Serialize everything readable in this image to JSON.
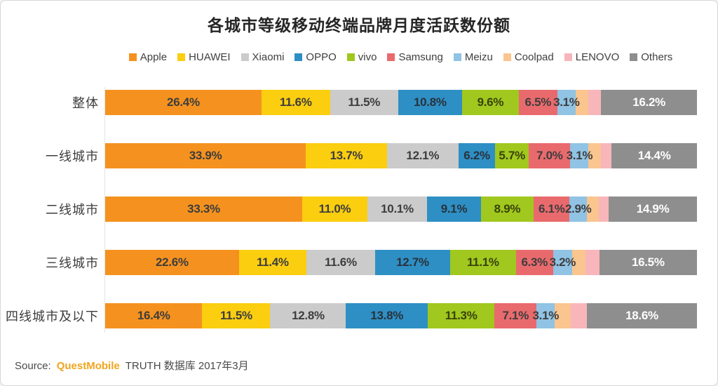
{
  "title": "各城市等级移动终端品牌月度活跃数份额",
  "chart_data": {
    "type": "bar",
    "variant": "horizontal-stacked",
    "title": "各城市等级移动终端品牌月度活跃数份额",
    "value_suffix": "%",
    "xlim": [
      0,
      100
    ],
    "grid": false,
    "legend_position": "top",
    "categories": [
      "整体",
      "一线城市",
      "二线城市",
      "三线城市",
      "四线城市及以下"
    ],
    "series": [
      {
        "name": "Apple",
        "color": "#F5921F",
        "label_color": "#3d3d3d",
        "show_label": true,
        "values": [
          26.4,
          33.9,
          33.3,
          22.6,
          16.4
        ]
      },
      {
        "name": "HUAWEI",
        "color": "#FBCE0F",
        "label_color": "#3d3d3d",
        "show_label": true,
        "values": [
          11.6,
          13.7,
          11.0,
          11.4,
          11.5
        ]
      },
      {
        "name": "Xiaomi",
        "color": "#CBCBCB",
        "label_color": "#3d3d3d",
        "show_label": true,
        "values": [
          11.5,
          12.1,
          10.1,
          11.6,
          12.8
        ]
      },
      {
        "name": "OPPO",
        "color": "#2E8FC4",
        "label_color": "#28323c",
        "show_label": true,
        "values": [
          10.8,
          6.2,
          9.1,
          12.7,
          13.8
        ]
      },
      {
        "name": "vivo",
        "color": "#A0C81E",
        "label_color": "#39420a",
        "show_label": true,
        "values": [
          9.6,
          5.7,
          8.9,
          11.1,
          11.3
        ]
      },
      {
        "name": "Samsung",
        "color": "#E96A6D",
        "label_color": "#3d3d3d",
        "show_label": true,
        "values": [
          6.5,
          7.0,
          6.1,
          6.3,
          7.1
        ]
      },
      {
        "name": "Meizu",
        "color": "#90C3E4",
        "label_color": "#3d3d3d",
        "show_label": true,
        "values": [
          3.1,
          3.1,
          2.9,
          3.2,
          3.1
        ]
      },
      {
        "name": "Coolpad",
        "color": "#FAC58E",
        "label_color": "#3d3d3d",
        "show_label": false,
        "values": [
          2.2,
          2.1,
          2.0,
          2.3,
          2.7
        ]
      },
      {
        "name": "LENOVO",
        "color": "#F8B6BA",
        "label_color": "#3d3d3d",
        "show_label": false,
        "values": [
          2.1,
          1.8,
          1.7,
          2.3,
          2.7
        ]
      },
      {
        "name": "Others",
        "color": "#8E8E8E",
        "label_color": "#FFFFFF",
        "show_label": true,
        "values": [
          16.2,
          14.4,
          14.9,
          16.5,
          18.6
        ]
      }
    ]
  },
  "footer": {
    "source_label": "Source:",
    "brand": "QuestMobile",
    "brand_color": "#F0A51E",
    "text": "TRUTH 数据库 2017年3月"
  }
}
